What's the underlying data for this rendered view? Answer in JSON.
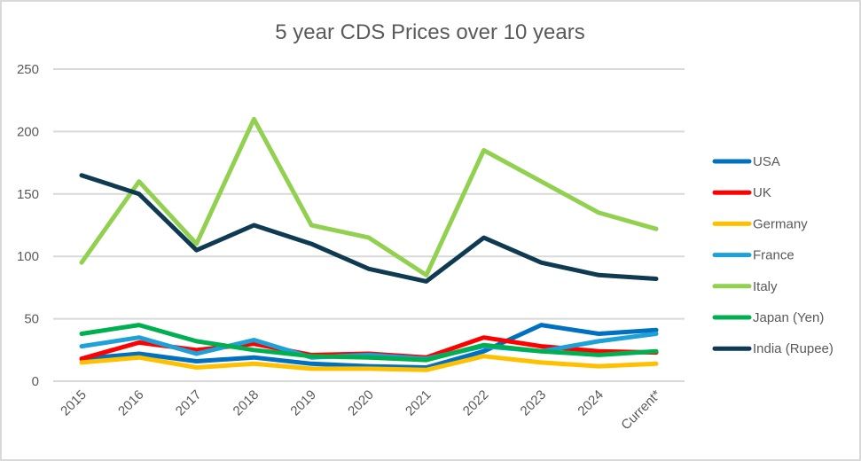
{
  "chart_data": {
    "type": "line",
    "title": "5 year CDS Prices over 10 years",
    "xlabel": "",
    "ylabel": "",
    "categories": [
      "2015",
      "2016",
      "2017",
      "2018",
      "2019",
      "2020",
      "2021",
      "2022",
      "2023",
      "2024",
      "Current*"
    ],
    "ylim": [
      0,
      250
    ],
    "yticks": [
      0,
      50,
      100,
      150,
      200,
      250
    ],
    "grid": true,
    "legend_position": "right",
    "series": [
      {
        "name": "USA",
        "color": "#0070c0",
        "values": [
          18,
          22,
          16,
          19,
          14,
          12,
          11,
          24,
          45,
          38,
          41
        ]
      },
      {
        "name": "UK",
        "color": "#ff0000",
        "values": [
          18,
          31,
          25,
          30,
          21,
          22,
          19,
          35,
          28,
          24,
          23
        ]
      },
      {
        "name": "Germany",
        "color": "#ffc000",
        "values": [
          15,
          19,
          11,
          14,
          10,
          10,
          9,
          20,
          15,
          12,
          14
        ]
      },
      {
        "name": "France",
        "color": "#1ea1d6",
        "values": [
          28,
          35,
          22,
          33,
          19,
          21,
          18,
          28,
          24,
          32,
          38
        ]
      },
      {
        "name": "Italy",
        "color": "#92d050",
        "values": [
          95,
          160,
          110,
          210,
          125,
          115,
          85,
          185,
          160,
          135,
          122
        ]
      },
      {
        "name": "Japan (Yen)",
        "color": "#00b050",
        "values": [
          38,
          45,
          32,
          25,
          20,
          19,
          17,
          29,
          24,
          21,
          24
        ]
      },
      {
        "name": "India (Rupee)",
        "color": "#0e3a52",
        "values": [
          165,
          150,
          105,
          125,
          110,
          90,
          80,
          115,
          95,
          85,
          82
        ]
      }
    ]
  }
}
